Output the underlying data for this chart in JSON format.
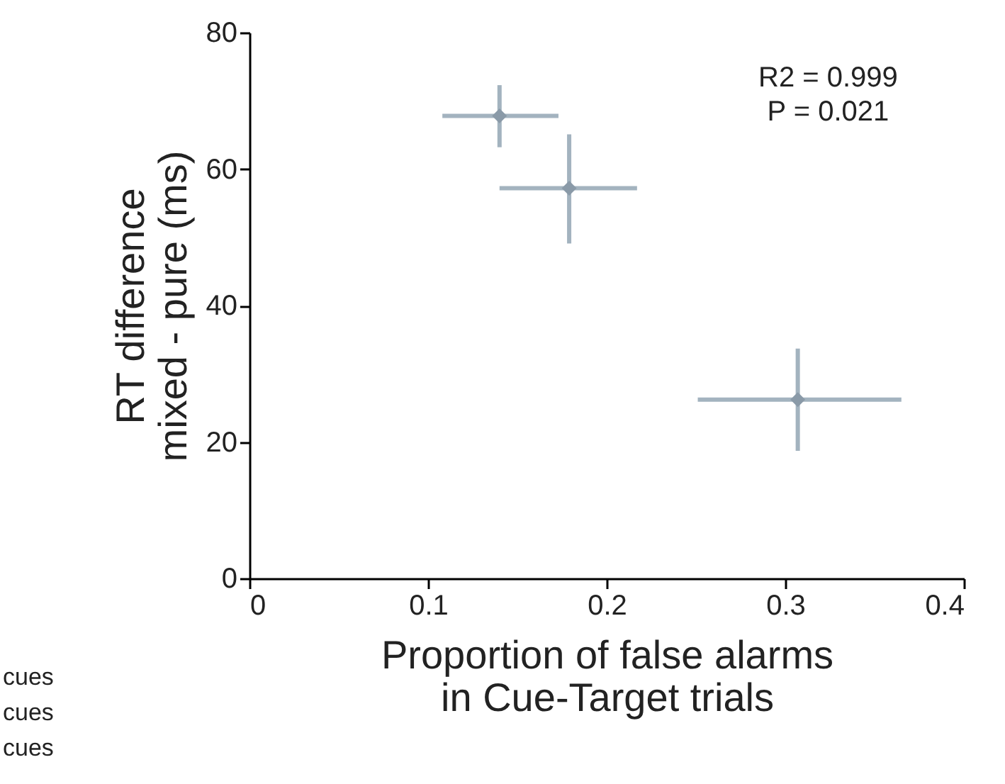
{
  "chart_data": {
    "type": "scatter",
    "xlabel": "Proportion of false alarms\nin Cue-Target trials",
    "ylabel": "RT difference\nmixed - pure (ms)",
    "x": [
      0.14,
      0.179,
      0.307
    ],
    "values": [
      67.8,
      57.2,
      26.2
    ],
    "errors": [
      [
        63.2,
        72.3
      ],
      [
        49.1,
        65.1
      ],
      [
        18.7,
        33.7
      ]
    ],
    "xerrors": [
      [
        0.108,
        0.173
      ],
      [
        0.14,
        0.217
      ],
      [
        0.251,
        0.365
      ]
    ],
    "color": "#8a9aa8",
    "marker": "diamond",
    "xlim": [
      0,
      0.4
    ],
    "xticks": [
      0,
      0.1,
      0.2,
      0.3,
      0.4
    ],
    "ylim": [
      0,
      80
    ],
    "yticks": [
      0,
      20,
      40,
      60,
      80
    ],
    "annotations": [
      "R2 = 0.999",
      "P = 0.021",
      "cues",
      "cues",
      "cues"
    ]
  }
}
